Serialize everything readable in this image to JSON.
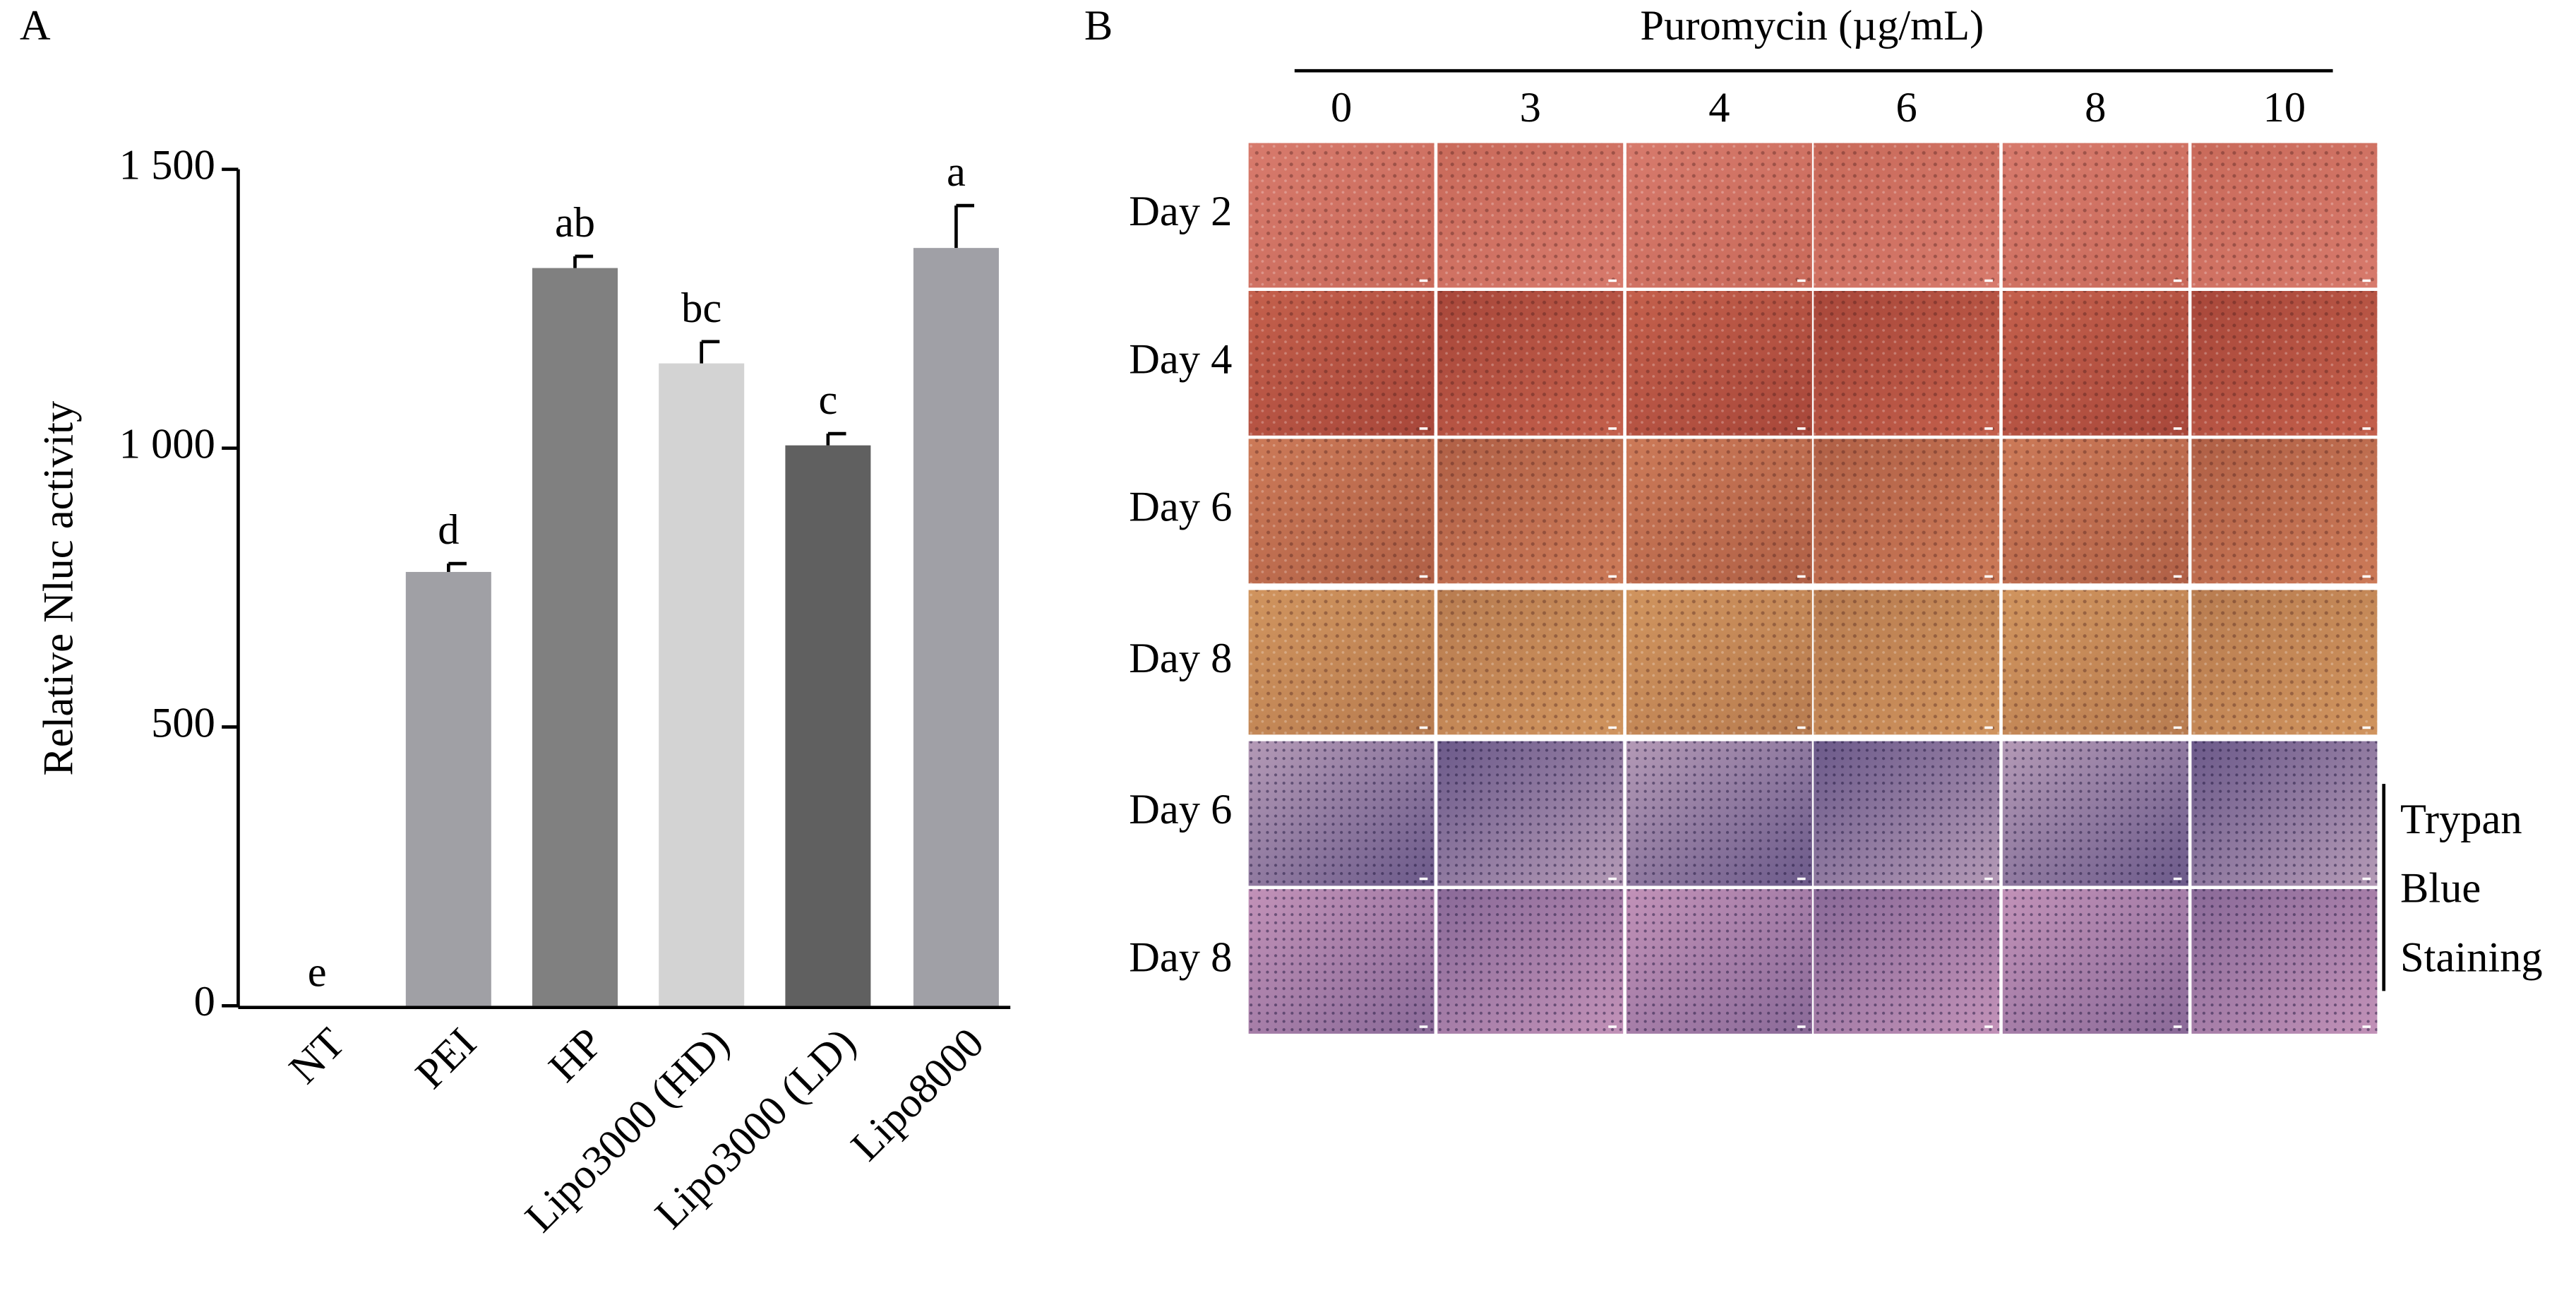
{
  "chart_data": {
    "type": "bar",
    "panel_label": "A",
    "y_label": "Relative Nluc activity",
    "categories": [
      "NT",
      "PEI",
      "HP",
      "Lipo3000 (HD)",
      "Lipo3000 (LD)",
      "Lipo8000"
    ],
    "values": [
      0,
      778,
      1323,
      1152,
      1005,
      1359
    ],
    "errors": [
      0,
      15,
      21,
      39,
      21,
      76
    ],
    "significance": [
      "e",
      "d",
      "ab",
      "bc",
      "c",
      "a"
    ],
    "colors": [
      "#a0a0a5",
      "#a0a0a5",
      "#808080",
      "#d3d3d3",
      "#606060",
      "#a0a0a6"
    ],
    "ylim": [
      0,
      1500
    ],
    "yticks": [
      0,
      500,
      {
        "value": 1000,
        "label": "1 000"
      },
      {
        "value": 1500,
        "label": "1 500"
      }
    ]
  },
  "panel_b": {
    "panel_label": "B",
    "title": "Puromycin (µg/mL)",
    "columns": [
      "0",
      "3",
      "4",
      "6",
      "8",
      "10"
    ],
    "rows": [
      "Day 2",
      "Day 4",
      "Day 6",
      "Day 8",
      "Day 6",
      "Day 8"
    ],
    "bracket_label": [
      "Trypan",
      "Blue",
      "Staining"
    ]
  }
}
